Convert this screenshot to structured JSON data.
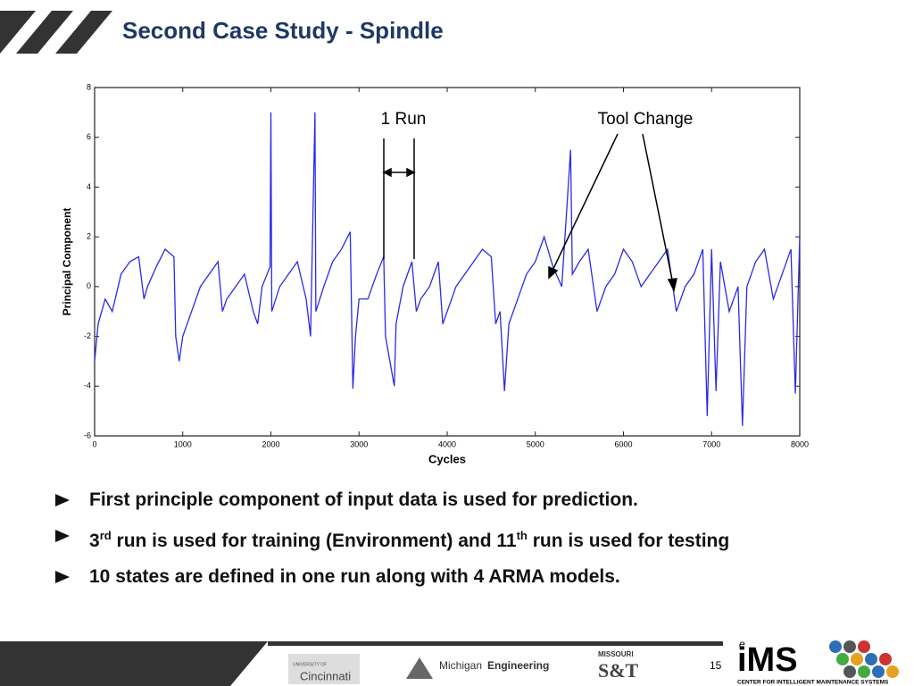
{
  "title": "Second Case Study - Spindle",
  "chart_data": {
    "type": "line",
    "xlabel": "Cycles",
    "ylabel": "Principal Component",
    "annotations": [
      "1 Run",
      "Tool Change"
    ],
    "xlim": [
      0,
      8000
    ],
    "ylim": [
      -6,
      8
    ],
    "xticks": [
      0,
      1000,
      2000,
      3000,
      4000,
      5000,
      6000,
      7000,
      8000
    ],
    "yticks": [
      -6,
      -4,
      -2,
      0,
      2,
      4,
      6,
      8
    ],
    "series": [
      {
        "color": "#2a2ae8",
        "x": [
          0,
          40,
          120,
          200,
          300,
          400,
          500,
          560,
          600,
          700,
          800,
          900,
          920,
          960,
          1000,
          1100,
          1200,
          1300,
          1400,
          1450,
          1500,
          1600,
          1700,
          1800,
          1850,
          1900,
          1990,
          2000,
          2010,
          2100,
          2200,
          2300,
          2400,
          2450,
          2500,
          2510,
          2600,
          2700,
          2800,
          2900,
          2930,
          2960,
          3000,
          3100,
          3200,
          3280,
          3300,
          3400,
          3420,
          3500,
          3600,
          3650,
          3700,
          3800,
          3900,
          3950,
          4000,
          4100,
          4200,
          4300,
          4400,
          4500,
          4550,
          4600,
          4650,
          4700,
          4800,
          4900,
          5000,
          5100,
          5200,
          5300,
          5400,
          5420,
          5500,
          5600,
          5700,
          5800,
          5900,
          6000,
          6100,
          6200,
          6300,
          6400,
          6500,
          6600,
          6700,
          6800,
          6900,
          6950,
          7000,
          7050,
          7100,
          7200,
          7300,
          7350,
          7400,
          7500,
          7600,
          7700,
          7800,
          7900,
          7950,
          8000
        ],
        "values": [
          -3,
          -1.5,
          -0.5,
          -1,
          0.5,
          1,
          1.2,
          -0.5,
          0,
          0.8,
          1.5,
          1.2,
          -2,
          -3,
          -2,
          -1,
          0,
          0.5,
          1,
          -1,
          -0.5,
          0,
          0.5,
          -1,
          -1.5,
          0,
          0.8,
          7,
          -1,
          0,
          0.5,
          1,
          -0.5,
          -2,
          7,
          -1,
          0,
          1,
          1.5,
          2.2,
          -4.1,
          -2,
          -0.5,
          -0.5,
          0.5,
          1.2,
          -2,
          -4,
          -1.5,
          0,
          1,
          -1,
          -0.5,
          0,
          1,
          -1.5,
          -1,
          0,
          0.5,
          1,
          1.5,
          1.2,
          -1.5,
          -1,
          -4.2,
          -1.5,
          -0.5,
          0.5,
          1,
          2,
          0.8,
          0,
          5.5,
          0.5,
          1,
          1.5,
          -1,
          0,
          0.5,
          1.5,
          1,
          0,
          0.5,
          1,
          1.5,
          -1,
          0,
          0.5,
          1.5,
          -5.2,
          1.5,
          -4.2,
          1,
          -1,
          0,
          -5.6,
          0,
          1,
          1.5,
          -0.5,
          0.5,
          1.5,
          -4.3,
          2
        ]
      }
    ]
  },
  "bullets": [
    {
      "parts": [
        {
          "text": "First principle component of input data is used for prediction."
        }
      ]
    },
    {
      "parts": [
        {
          "text": "3"
        },
        {
          "text": "rd",
          "sup": true
        },
        {
          "text": " run is used for training (Environment) and 11"
        },
        {
          "text": "th",
          "sup": true
        },
        {
          "text": " run is used for testing"
        }
      ]
    },
    {
      "parts": [
        {
          "text": "10 states are defined in one run along with 4 ARMA models."
        }
      ]
    }
  ],
  "footer": {
    "logos": [
      "UNIVERSITY OF",
      "Cincinnati",
      "Michigan",
      "Engineering",
      "MISSOURI",
      "S&T",
      "e",
      "iMS",
      "CENTER FOR INTELLIGENT MAINTENANCE SYSTEMS"
    ],
    "page": "15"
  }
}
